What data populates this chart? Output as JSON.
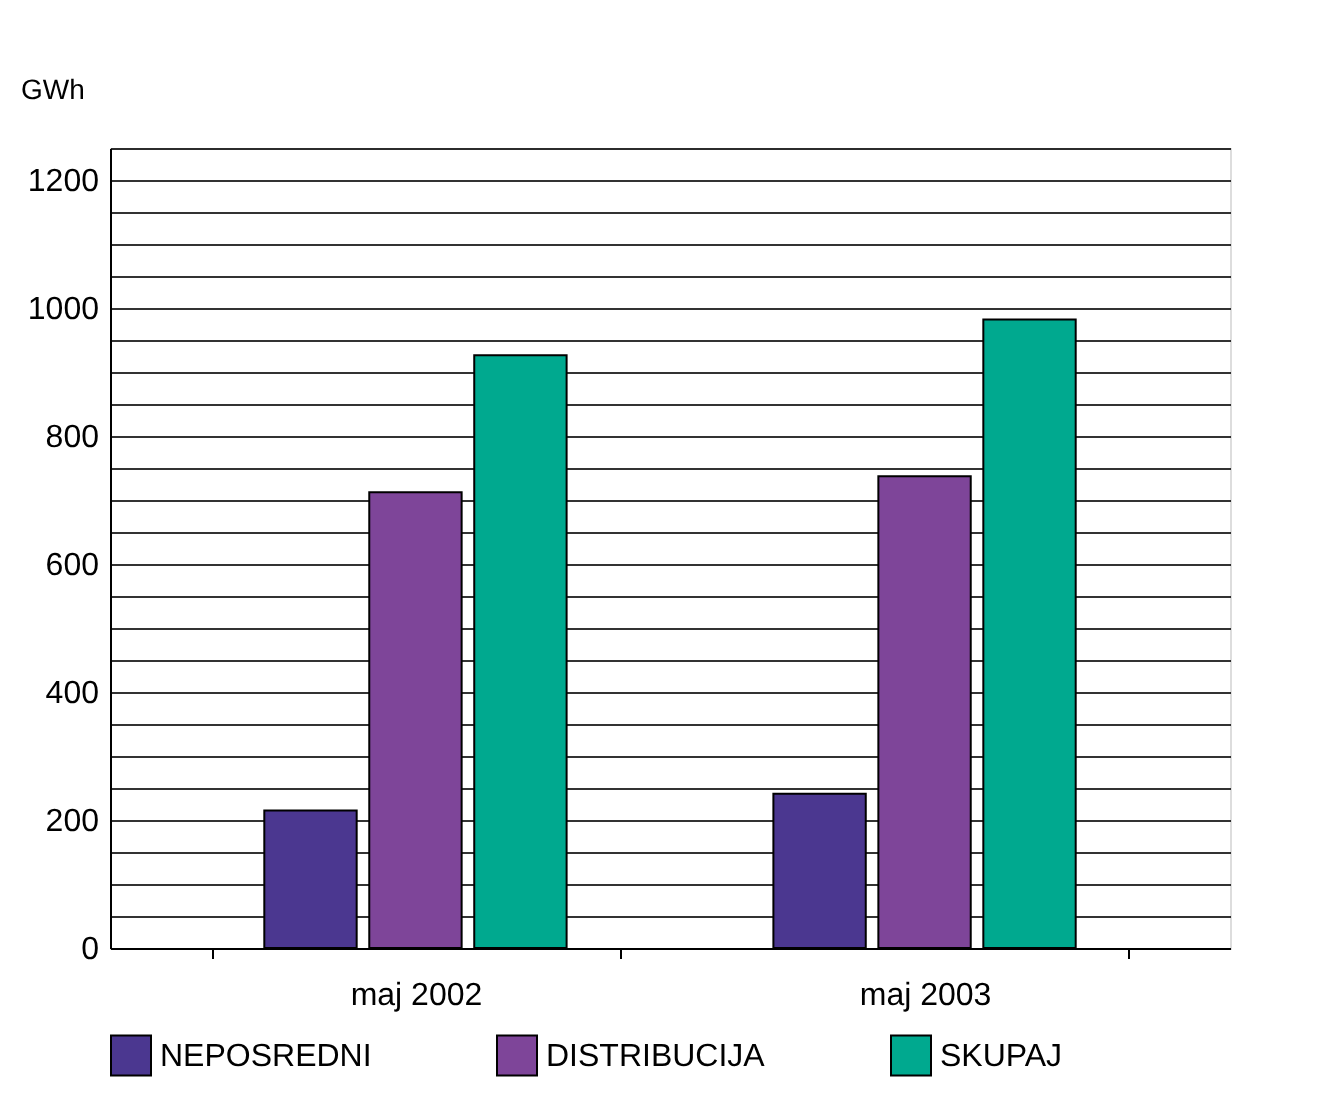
{
  "chart_data": {
    "type": "bar",
    "ylabel": "GWh",
    "categories": [
      "maj 2002",
      "maj 2003"
    ],
    "series": [
      {
        "name": "NEPOSREDNI",
        "color": "#4b3790",
        "values": [
          215,
          241
        ]
      },
      {
        "name": "DISTRIBUCIJA",
        "color": "#7e4599",
        "values": [
          712,
          737
        ]
      },
      {
        "name": "SKUPAJ",
        "color": "#00a98f",
        "values": [
          926,
          982
        ]
      }
    ],
    "ylim": [
      0,
      1250
    ],
    "yticks": [
      0,
      {
        "value": 50,
        "label": null
      },
      {
        "value": 100,
        "label": null
      },
      {
        "value": 150,
        "label": null
      },
      200,
      {
        "value": 250,
        "label": null
      },
      {
        "value": 300,
        "label": null
      },
      {
        "value": 350,
        "label": null
      },
      400,
      {
        "value": 450,
        "label": null
      },
      {
        "value": 500,
        "label": null
      },
      {
        "value": 550,
        "label": null
      },
      600,
      {
        "value": 650,
        "label": null
      },
      {
        "value": 700,
        "label": null
      },
      {
        "value": 750,
        "label": null
      },
      800,
      {
        "value": 850,
        "label": null
      },
      {
        "value": 900,
        "label": null
      },
      {
        "value": 950,
        "label": null
      },
      1000,
      {
        "value": 1050,
        "label": null
      },
      {
        "value": 1100,
        "label": null
      },
      {
        "value": 1150,
        "label": null
      },
      1200,
      {
        "value": 1250,
        "label": null
      }
    ],
    "grid": "y",
    "legend": "bottom"
  }
}
